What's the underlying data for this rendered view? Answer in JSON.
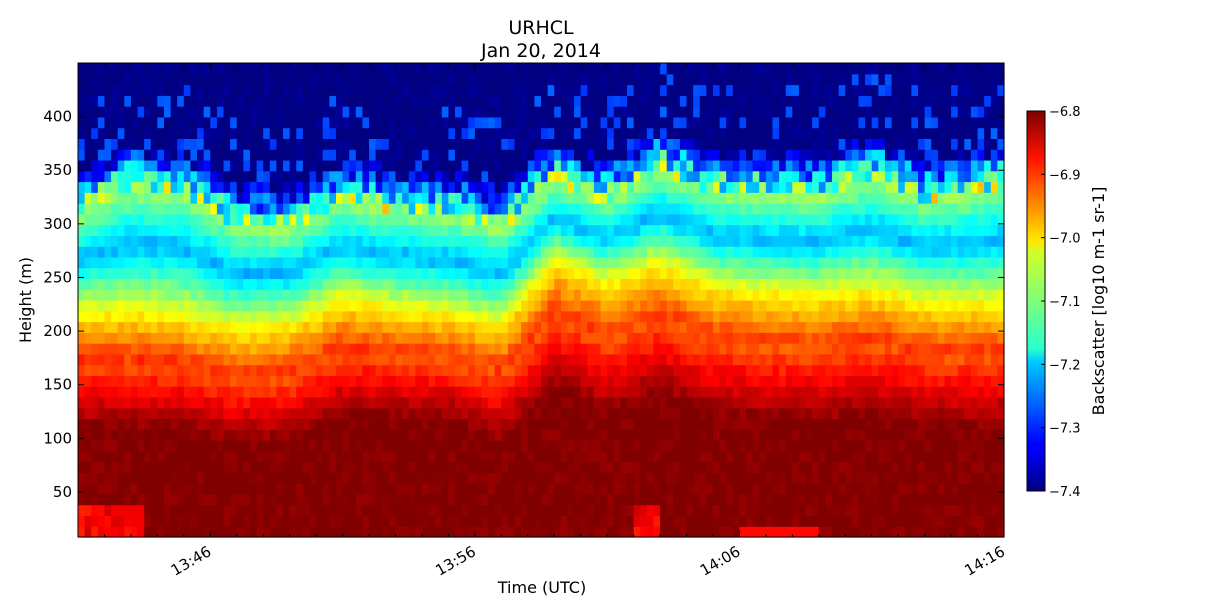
{
  "chart_data": {
    "type": "heatmap",
    "title": "URHCL",
    "subtitle": "Jan 20, 2014",
    "xlabel": "Time (UTC)",
    "ylabel": "Height (m)",
    "colorbar_label": "Backscatter [log10 m-1 sr-1]",
    "colormap": "jet",
    "x_range_minutes": [
      "13:41",
      "14:16"
    ],
    "x_tick_labels": [
      "13:46",
      "13:56",
      "14:06",
      "14:16"
    ],
    "x_tick_values": [
      "13:46",
      "13:56",
      "14:06",
      "14:16"
    ],
    "ylim": [
      8,
      450
    ],
    "y_ticks": [
      50,
      100,
      150,
      200,
      250,
      300,
      350,
      400
    ],
    "clim": [
      -7.4,
      -6.8
    ],
    "colorbar_ticks": [
      -6.8,
      -6.9,
      -7.0,
      -7.1,
      -7.2,
      -7.3,
      -7.4
    ],
    "colorbar_tick_labels": [
      "−6.8",
      "−6.9",
      "−7.0",
      "−7.1",
      "−7.2",
      "−7.3",
      "−7.4"
    ],
    "profile_times": [
      "13:41",
      "13:43",
      "13:45",
      "13:47",
      "13:49",
      "13:51",
      "13:53",
      "13:55",
      "13:57",
      "13:59",
      "14:01",
      "14:03",
      "14:05",
      "14:07",
      "14:09",
      "14:11",
      "14:13",
      "14:16"
    ],
    "layer_heights_m": {
      "strong_backscatter_top": [
        108,
        108,
        107,
        95,
        95,
        118,
        117,
        118,
        95,
        145,
        120,
        140,
        120,
        115,
        112,
        122,
        110,
        110
      ],
      "mid_layer_top": [
        215,
        218,
        212,
        200,
        205,
        228,
        220,
        215,
        205,
        265,
        245,
        262,
        240,
        235,
        232,
        238,
        225,
        225
      ],
      "aerosol_layer_top": [
        310,
        335,
        330,
        298,
        295,
        322,
        312,
        310,
        295,
        340,
        320,
        350,
        330,
        328,
        325,
        343,
        322,
        335
      ]
    },
    "backscatter_levels": {
      "below_strong_top": -6.8,
      "mid_layer": -6.9,
      "upper_mid": -7.02,
      "blue_band": -7.22,
      "top_band": -7.08,
      "above_layer": -7.4
    }
  }
}
